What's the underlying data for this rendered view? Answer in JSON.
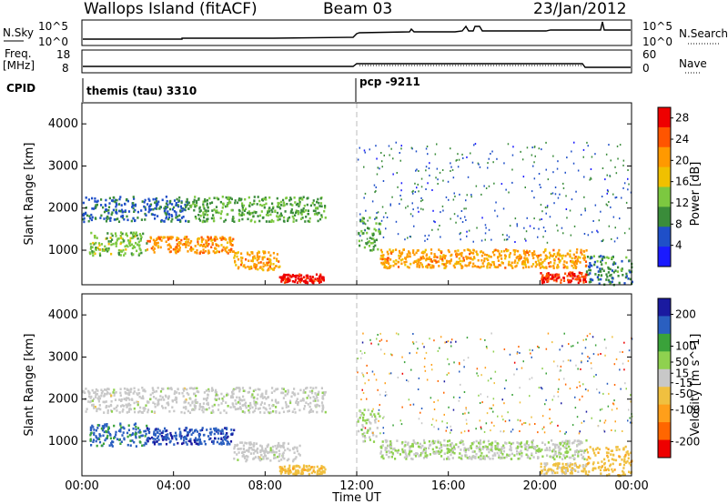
{
  "header": {
    "station": "Wallops Island (fitACF)",
    "beam": "Beam 03",
    "date": "23/Jan/2012"
  },
  "status_panels": {
    "nsky_label": "N.Sky",
    "nsky_ticks": [
      "10^5",
      "10^0"
    ],
    "nsearch_label": "N.Search",
    "nsearch_ticks": [
      "10^5",
      "10^0"
    ],
    "freq_label": "Freq.",
    "freq_unit": "[MHz]",
    "freq_ticks": [
      "18",
      "8"
    ],
    "nave_label": "Nave",
    "nave_ticks": [
      "60",
      "0"
    ],
    "cpid_label": "CPID",
    "cpid_programs": [
      {
        "name": "themis (tau) 3310",
        "start_hour": 0
      },
      {
        "name": "pcp -9211",
        "start_hour": 12
      }
    ]
  },
  "colors": {
    "power": [
      "#1a1aff",
      "#1f4fc8",
      "#3a8c3a",
      "#7cc840",
      "#f0c000",
      "#ff9900",
      "#ff5500",
      "#ee0000"
    ],
    "velocity": [
      "#ee0000",
      "#ff6600",
      "#ff9f1a",
      "#f0c040",
      "#c8c8c8",
      "#8fd14f",
      "#3aa23a",
      "#2a5fc0",
      "#1a1aa0"
    ]
  },
  "chart_data": [
    {
      "type": "heatmap",
      "panel": "power",
      "xlabel": "",
      "ylabel": "Slant Range [km]",
      "ylim": [
        180,
        4500
      ],
      "yticks": [
        "1000",
        "2000",
        "3000",
        "4000"
      ],
      "colorbar_label": "Power [dB]",
      "colorbar_ticks": [
        "4",
        "8",
        "12",
        "16",
        "20",
        "24",
        "28"
      ],
      "colorbar_range": [
        0,
        30
      ],
      "bands": [
        {
          "t0": 0.0,
          "t1": 4.6,
          "r0": 1700,
          "r1": 2300,
          "v": 7
        },
        {
          "t0": 4.6,
          "t1": 10.6,
          "r0": 1700,
          "r1": 2300,
          "v": 11
        },
        {
          "t0": 0.3,
          "t1": 2.8,
          "r0": 900,
          "r1": 1450,
          "v": 13
        },
        {
          "t0": 2.8,
          "t1": 6.6,
          "r0": 950,
          "r1": 1350,
          "v": 21
        },
        {
          "t0": 6.6,
          "t1": 8.6,
          "r0": 550,
          "r1": 1000,
          "v": 20
        },
        {
          "t0": 8.6,
          "t1": 10.6,
          "r0": 250,
          "r1": 450,
          "v": 28
        },
        {
          "t0": 12.0,
          "t1": 13.0,
          "r0": 1000,
          "r1": 1800,
          "v": 11
        },
        {
          "t0": 13.0,
          "t1": 22.0,
          "r0": 600,
          "r1": 1050,
          "v": 20
        },
        {
          "t0": 20.0,
          "t1": 22.0,
          "r0": 250,
          "r1": 500,
          "v": 26
        },
        {
          "t0": 22.0,
          "t1": 24.0,
          "r0": 200,
          "r1": 900,
          "v": 9
        }
      ]
    },
    {
      "type": "heatmap",
      "panel": "velocity",
      "xlabel": "Time UT",
      "ylabel": "Slant Range [km]",
      "xticks": [
        "00:00",
        "04:00",
        "08:00",
        "12:00",
        "16:00",
        "20:00",
        "00:00"
      ],
      "xlim_hours": [
        0,
        24
      ],
      "ylim": [
        180,
        4500
      ],
      "yticks": [
        "1000",
        "2000",
        "3000",
        "4000"
      ],
      "colorbar_label": "Velocity [m s^-1]",
      "colorbar_ticks": [
        "200",
        "100",
        "50",
        "15",
        "-15",
        "-50",
        "-100",
        "-200"
      ],
      "colorbar_range": [
        -250,
        250
      ],
      "bands": [
        {
          "t0": 0.0,
          "t1": 4.6,
          "r0": 1700,
          "r1": 2300,
          "v": 0
        },
        {
          "t0": 4.6,
          "t1": 10.6,
          "r0": 1700,
          "r1": 2300,
          "v": 5
        },
        {
          "t0": 0.3,
          "t1": 2.8,
          "r0": 900,
          "r1": 1450,
          "v": 150
        },
        {
          "t0": 2.8,
          "t1": 6.6,
          "r0": 950,
          "r1": 1350,
          "v": 180
        },
        {
          "t0": 6.6,
          "t1": 9.5,
          "r0": 550,
          "r1": 1000,
          "v": 0
        },
        {
          "t0": 8.6,
          "t1": 10.6,
          "r0": 250,
          "r1": 450,
          "v": -70
        },
        {
          "t0": 12.0,
          "t1": 13.0,
          "r0": 1000,
          "r1": 1800,
          "v": 30
        },
        {
          "t0": 13.0,
          "t1": 22.0,
          "r0": 600,
          "r1": 1050,
          "v": 25
        },
        {
          "t0": 20.0,
          "t1": 22.0,
          "r0": 250,
          "r1": 500,
          "v": -40
        },
        {
          "t0": 22.0,
          "t1": 24.0,
          "r0": 200,
          "r1": 900,
          "v": -60
        }
      ]
    }
  ]
}
